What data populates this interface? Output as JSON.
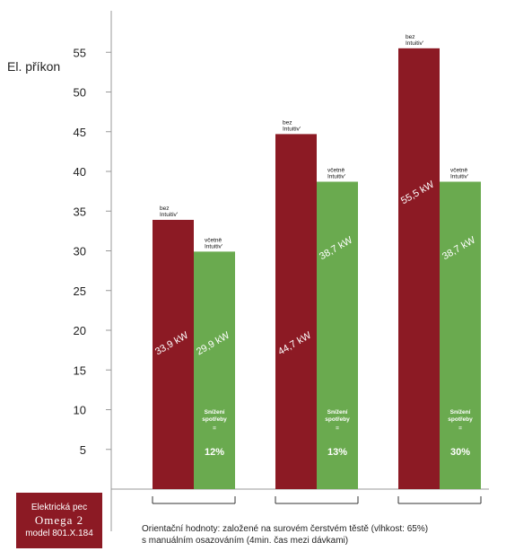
{
  "chart_data": {
    "type": "bar",
    "ylabel": "El. příkon",
    "ylim": [
      0,
      60
    ],
    "yticks": [
      5,
      10,
      15,
      20,
      25,
      30,
      35,
      40,
      45,
      50,
      55
    ],
    "grid": false,
    "groups": [
      {
        "bars": [
          {
            "series": "bez Intuitiv'",
            "value": 33.9,
            "label": "33,9 kW",
            "color": "#8c1a24",
            "small_label": [
              "bez",
              "Intuitiv'"
            ]
          },
          {
            "series": "včetně Intuitiv'",
            "value": 29.9,
            "label": "29,9 kW",
            "color": "#6aaa4f",
            "small_label": [
              "včetně",
              "Intuitiv'"
            ]
          }
        ],
        "reduction": {
          "line1": "Snížení",
          "line2": "spotřeby",
          "eq": "=",
          "percent": "12%"
        }
      },
      {
        "bars": [
          {
            "series": "bez Intuitiv'",
            "value": 44.7,
            "label": "44,7 kW",
            "color": "#8c1a24",
            "small_label": [
              "bez",
              "Intuitiv'"
            ]
          },
          {
            "series": "včetně Intuitiv'",
            "value": 38.7,
            "label": "38,7 kW",
            "color": "#6aaa4f",
            "small_label": [
              "včetně",
              "Intuitiv'"
            ]
          }
        ],
        "reduction": {
          "line1": "Snížení",
          "line2": "spotřeby",
          "eq": "=",
          "percent": "13%"
        }
      },
      {
        "bars": [
          {
            "series": "bez Intuitiv'",
            "value": 55.5,
            "label": "55,5 kW",
            "color": "#8c1a24",
            "small_label": [
              "bez",
              "Intuitiv'"
            ]
          },
          {
            "series": "včetně Intuitiv'",
            "value": 38.7,
            "label": "38,7 kW",
            "color": "#6aaa4f",
            "small_label": [
              "včetně",
              "Intuitiv'"
            ]
          }
        ],
        "reduction": {
          "line1": "Snížení",
          "line2": "spotřeby",
          "eq": "=",
          "percent": "30%"
        }
      }
    ]
  },
  "model_box": {
    "line1": "Elektrická pec",
    "line2": "Omega 2",
    "line3": "model 801.X.184"
  },
  "note": {
    "line1": "Orientační hodnoty: založené na surovém čerstvém těstě (vlhkost: 65%)",
    "line2": "s manuálním osazováním (4min. čas mezi dávkami)"
  }
}
